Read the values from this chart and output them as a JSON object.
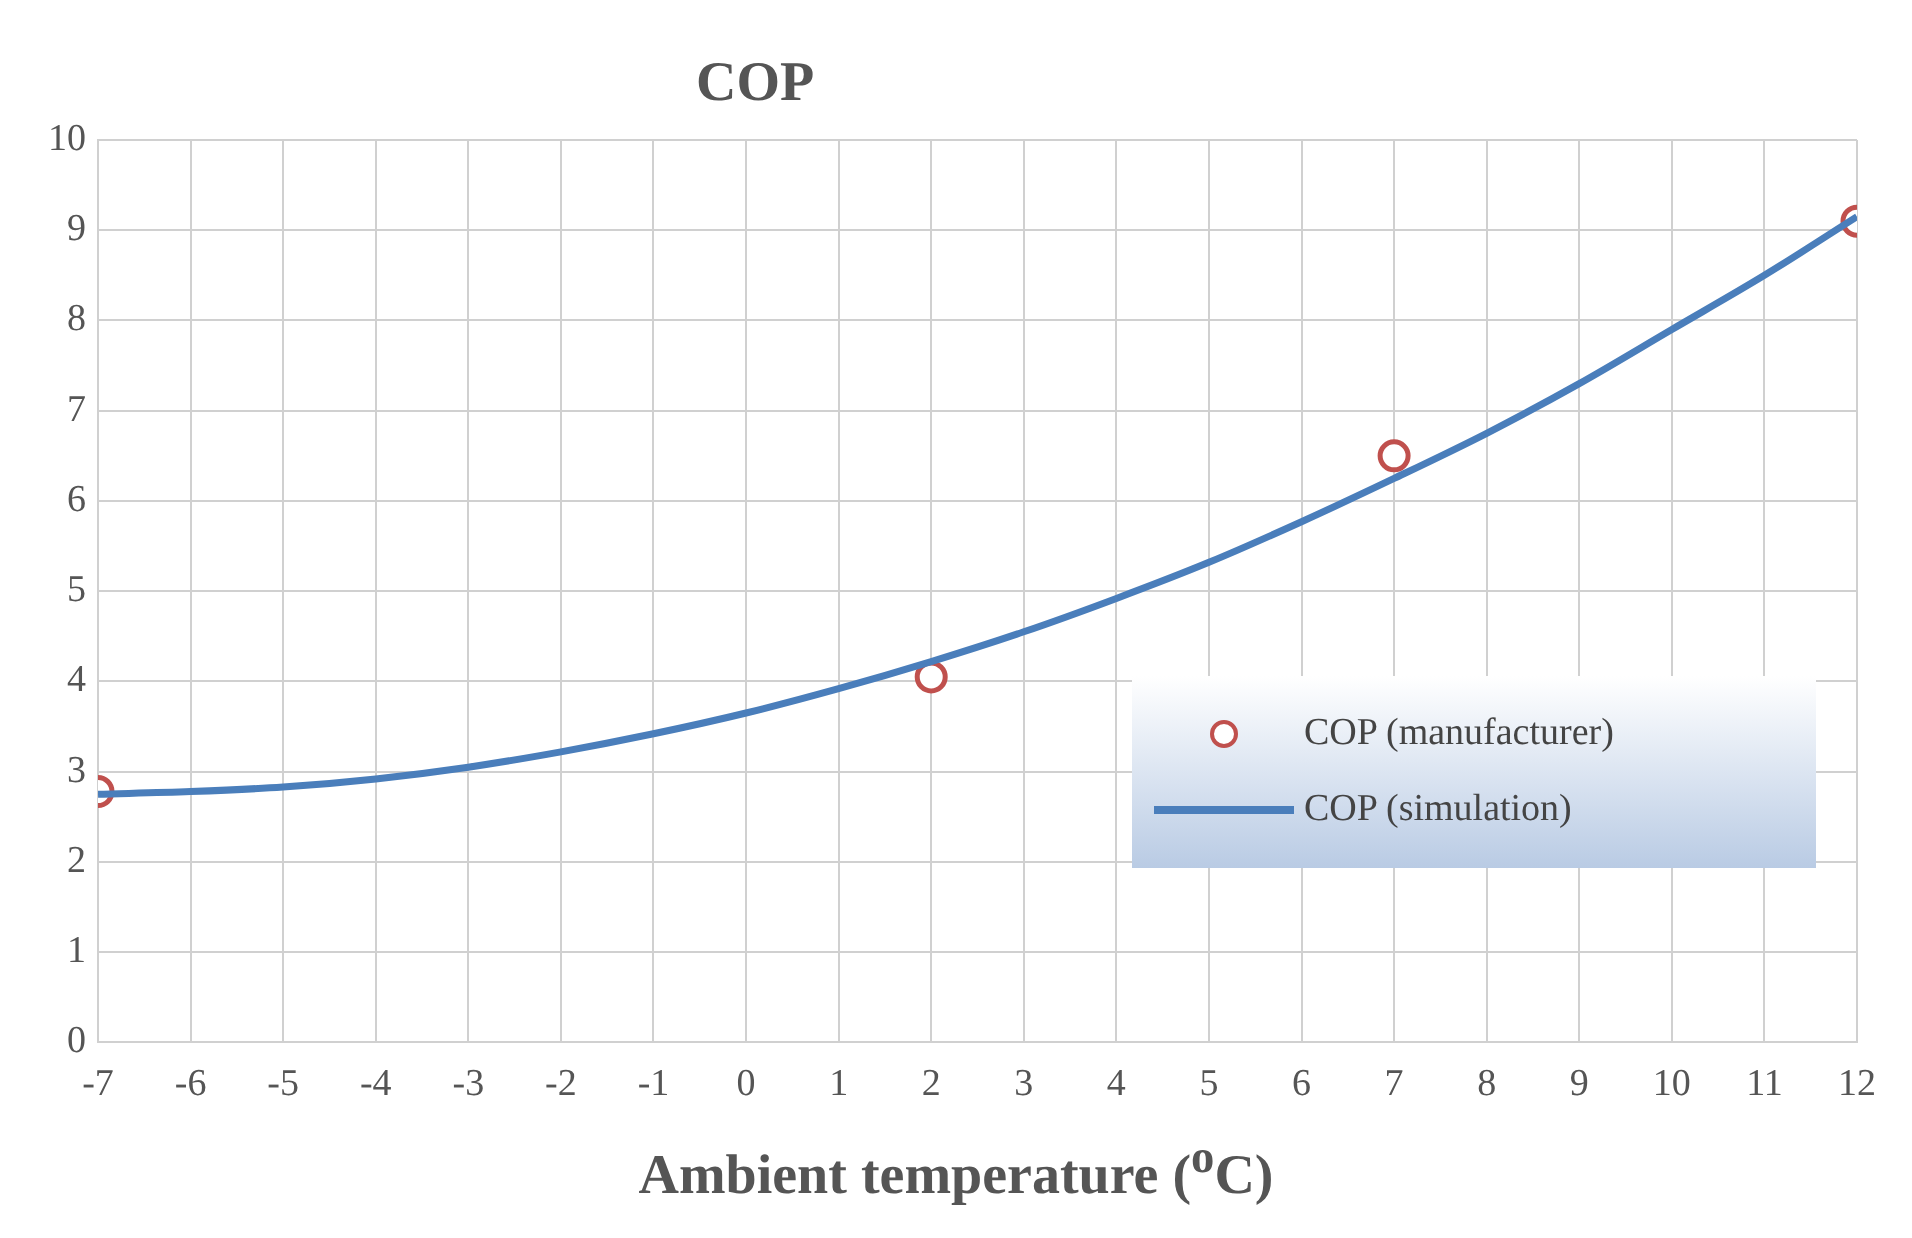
{
  "chart_data": {
    "type": "scatter",
    "ylabel": "COP",
    "xlabel": "Ambient temperature ($^{o}$C)",
    "xlim": [
      -7,
      12
    ],
    "xticks": [
      -7,
      -6,
      -5,
      -4,
      -3,
      -2,
      -1,
      0,
      1,
      2,
      3,
      4,
      5,
      6,
      7,
      8,
      9,
      10,
      11,
      12
    ],
    "ylim": [
      0,
      10
    ],
    "yticks": [
      0,
      1,
      2,
      3,
      4,
      5,
      6,
      7,
      8,
      9,
      10
    ],
    "grid": true,
    "legend": "right",
    "series": [
      {
        "name": "COP (manufacturer)",
        "type": "scatter",
        "color": "#c0504d",
        "marker": "circle",
        "x": [
          -7,
          2,
          7,
          12
        ],
        "values": [
          2.78,
          4.05,
          6.5,
          9.1
        ]
      },
      {
        "name": "COP (simulation)",
        "type": "line",
        "color": "#4a7ebb",
        "marker": "none",
        "line_style": "solid",
        "x": [
          -7,
          -6,
          -5,
          -4,
          -3,
          -2,
          -1,
          0,
          1,
          2,
          3,
          4,
          5,
          6,
          7,
          8,
          9,
          10,
          11,
          12
        ],
        "values": [
          2.75,
          2.78,
          2.83,
          2.92,
          3.05,
          3.22,
          3.42,
          3.65,
          3.92,
          4.22,
          4.55,
          4.92,
          5.32,
          5.77,
          6.25,
          6.75,
          7.3,
          7.9,
          8.5,
          9.15
        ]
      }
    ]
  }
}
